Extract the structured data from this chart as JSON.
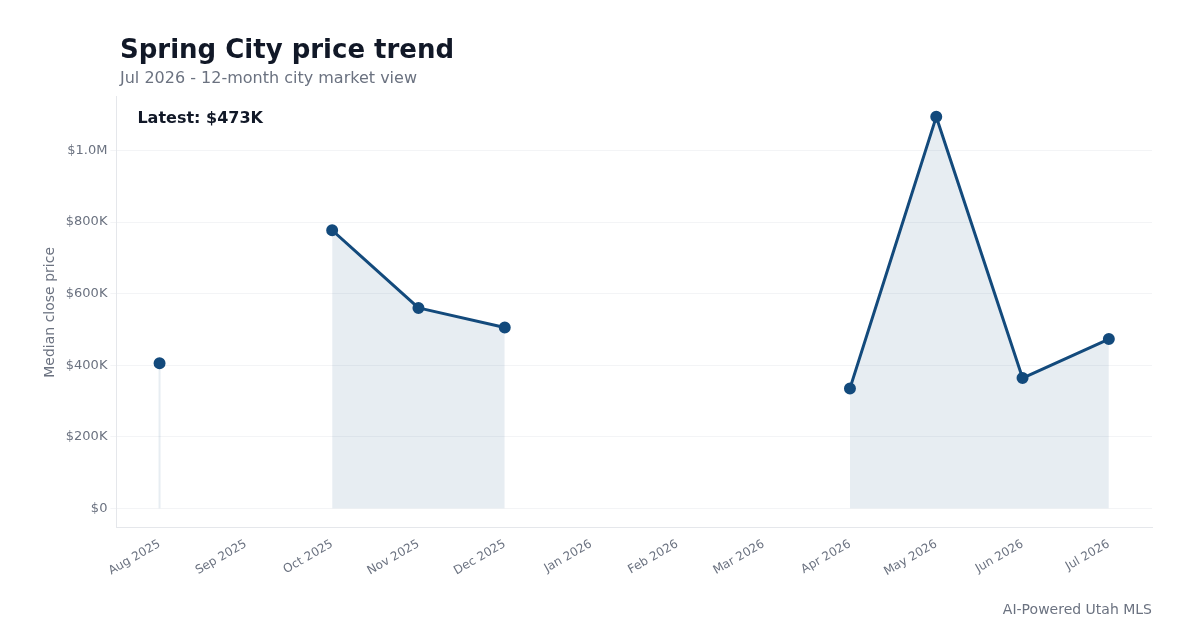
{
  "chart_data": {
    "type": "area",
    "title": "Spring City price trend",
    "subtitle": "Jul 2026 - 12-month city market view",
    "ylabel": "Median close price",
    "annotations": [
      "Latest: $473K",
      "AI-Powered Utah MLS"
    ],
    "categories": [
      "Aug 2025",
      "Sep 2025",
      "Oct 2025",
      "Nov 2025",
      "Dec 2025",
      "Jan 2026",
      "Feb 2026",
      "Mar 2026",
      "Apr 2026",
      "May 2026",
      "Jun 2026",
      "Jul 2026"
    ],
    "series": [
      {
        "color": "#134a7c",
        "values": [
          405000,
          null,
          777000,
          560000,
          505000,
          null,
          null,
          null,
          335000,
          1094000,
          364000,
          473000
        ]
      }
    ],
    "ylim": [
      -55000,
      1150000
    ],
    "yticks": [
      {
        "value": 0,
        "label": "$0"
      },
      {
        "value": 200000,
        "label": "$200K"
      },
      {
        "value": 400000,
        "label": "$400K"
      },
      {
        "value": 600000,
        "label": "$600K"
      },
      {
        "value": 800000,
        "label": "$800K"
      },
      {
        "value": 1000000,
        "label": "$1.0M"
      }
    ],
    "grid": "y",
    "marker": "circle",
    "line_style": "solid"
  }
}
